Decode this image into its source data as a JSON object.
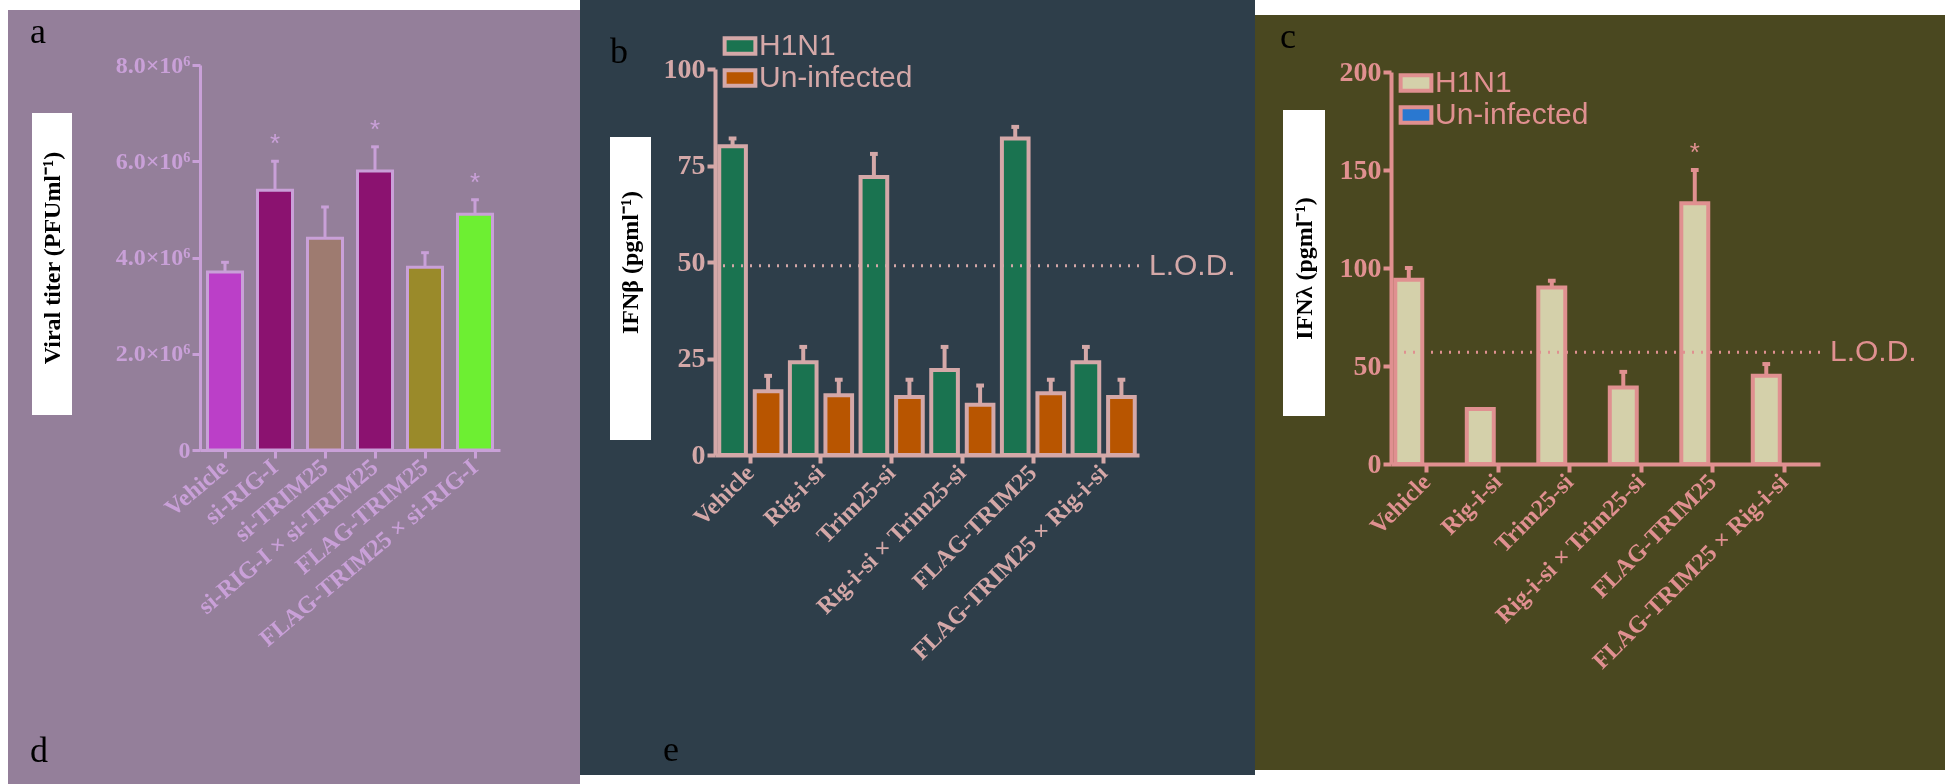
{
  "chart_data": [
    {
      "type": "bar",
      "title": "a",
      "ylabel": "Viral titer (PFUml⁻¹)",
      "categories": [
        "Vehicle",
        "si-RIG-I",
        "si-TRIM25",
        "si-RIG-I × si-TRIM25",
        "FLAG-TRIM25",
        "FLAG-TRIM25 × si-RIG-I"
      ],
      "values": [
        3700000,
        5400000,
        4400000,
        5800000,
        3800000,
        4900000
      ],
      "errors": [
        200000,
        600000,
        650000,
        500000,
        300000,
        300000
      ],
      "colors": [
        "#bb3fc8",
        "#8b1270",
        "#9e7b70",
        "#8b1270",
        "#9a8a2a",
        "#6def32"
      ],
      "ylim": [
        0,
        8000000
      ],
      "yticks": [
        0,
        {
          "value": 2000000,
          "label": "2.0×10⁶"
        },
        {
          "value": 4000000,
          "label": "4.0×10⁶"
        },
        {
          "value": 6000000,
          "label": "6.0×10⁶"
        },
        {
          "value": 8000000,
          "label": "8.0×10⁶"
        }
      ],
      "annotations": [
        "d",
        {
          "text": "*",
          "x": "si-RIG-I",
          "y": 5400000
        },
        {
          "text": "*",
          "x": "si-RIG-I × si-TRIM25",
          "y": 5800000
        },
        {
          "text": "*",
          "x": "FLAG-TRIM25 × si-RIG-I",
          "y": 4900000
        }
      ]
    },
    {
      "type": "bar",
      "title": "b",
      "ylabel": "IFNβ (pgml⁻¹)",
      "categories": [
        "Vehicle",
        "Rig-i-si",
        "Trim25-si",
        "Rig-i-si × Trim25-si",
        "FLAG-TRIM25",
        "FLAG-TRIM25 × Rig-i-si"
      ],
      "series": [
        {
          "name": "H1N1",
          "color": "#1a7350",
          "values": [
            80,
            24,
            72,
            22,
            82,
            24
          ],
          "errors": [
            2,
            4,
            6,
            6,
            3,
            4
          ]
        },
        {
          "name": "Un-infected",
          "color": "#b85500",
          "values": [
            16.5,
            15.5,
            15,
            13,
            16,
            15
          ],
          "errors": [
            4,
            4,
            4.5,
            5,
            3.5,
            4.5
          ]
        }
      ],
      "ylim": [
        0,
        100
      ],
      "yticks": [
        0,
        25,
        50,
        75,
        100
      ],
      "legend": "top left",
      "ref_lines": [
        {
          "axis": "y",
          "value": 49,
          "label": "L.O.D.",
          "color": "#d4a8a8",
          "line_style": "dotted"
        }
      ],
      "annotations": [
        "e"
      ]
    },
    {
      "type": "bar",
      "title": "c",
      "ylabel": "IFNλ (pgml⁻¹)",
      "categories": [
        "Vehicle",
        "Rig-i-si",
        "Trim25-si",
        "Rig-i-si × Trim25-si",
        "FLAG-TRIM25",
        "FLAG-TRIM25 × Rig-i-si"
      ],
      "series": [
        {
          "name": "H1N1",
          "color": "#d4d0aa",
          "values": [
            94,
            28,
            90,
            39,
            133,
            45
          ],
          "errors": [
            6,
            null,
            3.5,
            8,
            17,
            6
          ]
        },
        {
          "name": "Un-infected",
          "color": "#2a78d0",
          "values": [
            null,
            null,
            null,
            null,
            null,
            null
          ]
        }
      ],
      "ylim": [
        0,
        200
      ],
      "yticks": [
        0,
        50,
        100,
        150,
        200
      ],
      "legend": "top left",
      "ref_lines": [
        {
          "axis": "y",
          "value": 57,
          "label": "L.O.D.",
          "color": "#e09090",
          "line_style": "dotted"
        }
      ],
      "annotations": [
        {
          "text": "*",
          "x": "FLAG-TRIM25",
          "y": 133
        }
      ]
    }
  ]
}
